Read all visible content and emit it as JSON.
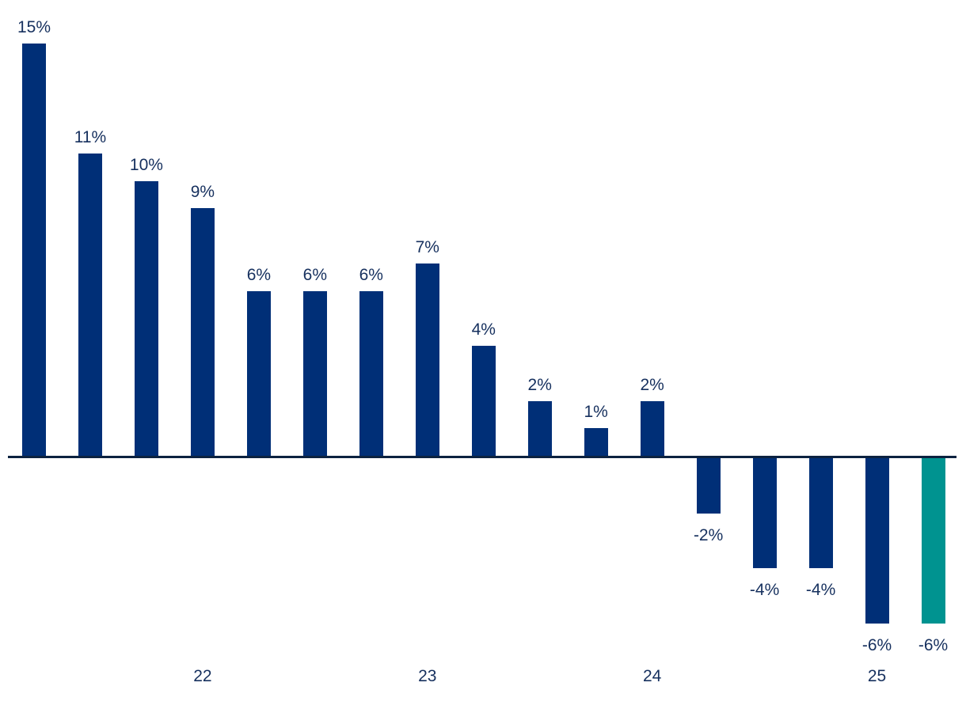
{
  "chart_data": {
    "type": "bar",
    "title": "",
    "xlabel": "",
    "ylabel": "",
    "ylim": [
      -8,
      16
    ],
    "grid": false,
    "legend": false,
    "unit": "%",
    "bar_color": "#002F77",
    "highlight_color": "#009390",
    "label_color": "#16305E",
    "axis_color": "#0C2240",
    "background_color": "#FFFFFF",
    "bars": [
      {
        "label": "15%",
        "value": 15
      },
      {
        "label": "11%",
        "value": 11
      },
      {
        "label": "10%",
        "value": 10
      },
      {
        "label": "9%",
        "value": 9
      },
      {
        "label": "6%",
        "value": 6
      },
      {
        "label": "6%",
        "value": 6
      },
      {
        "label": "6%",
        "value": 6
      },
      {
        "label": "7%",
        "value": 7
      },
      {
        "label": "4%",
        "value": 4
      },
      {
        "label": "2%",
        "value": 2
      },
      {
        "label": "1%",
        "value": 1
      },
      {
        "label": "2%",
        "value": 2
      },
      {
        "label": "-2%",
        "value": -2
      },
      {
        "label": "-4%",
        "value": -4
      },
      {
        "label": "-4%",
        "value": -4
      },
      {
        "label": "-6%",
        "value": -6
      },
      {
        "label": "-6%",
        "value": -6,
        "highlight": true
      }
    ],
    "x_tick_labels": [
      {
        "label": "22",
        "bar_index": 3
      },
      {
        "label": "23",
        "bar_index": 7
      },
      {
        "label": "24",
        "bar_index": 11
      },
      {
        "label": "25",
        "bar_index": 15
      }
    ]
  }
}
